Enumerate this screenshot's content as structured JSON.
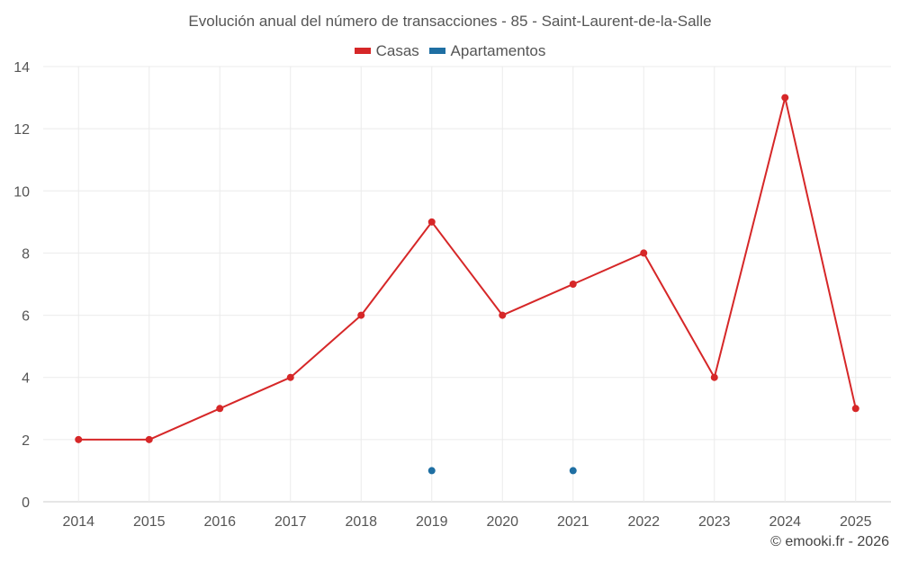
{
  "chart_data": {
    "type": "line",
    "title": "Evolución anual del número de transacciones - 85 - Saint-Laurent-de-la-Salle",
    "categories": [
      "2014",
      "2015",
      "2016",
      "2017",
      "2018",
      "2019",
      "2020",
      "2021",
      "2022",
      "2023",
      "2024",
      "2025"
    ],
    "series": [
      {
        "name": "Casas",
        "color": "#d62728",
        "values": [
          2,
          2,
          3,
          4,
          6,
          9,
          6,
          7,
          8,
          4,
          13,
          3
        ]
      },
      {
        "name": "Apartamentos",
        "color": "#1f6fa3",
        "values": [
          null,
          null,
          null,
          null,
          null,
          1,
          null,
          1,
          null,
          null,
          null,
          null
        ]
      }
    ],
    "ylim": [
      0,
      14
    ],
    "yticks": [
      0,
      2,
      4,
      6,
      8,
      10,
      12,
      14
    ],
    "grid": true,
    "legend_position": "top-center"
  },
  "credit": "© emooki.fr - 2026"
}
